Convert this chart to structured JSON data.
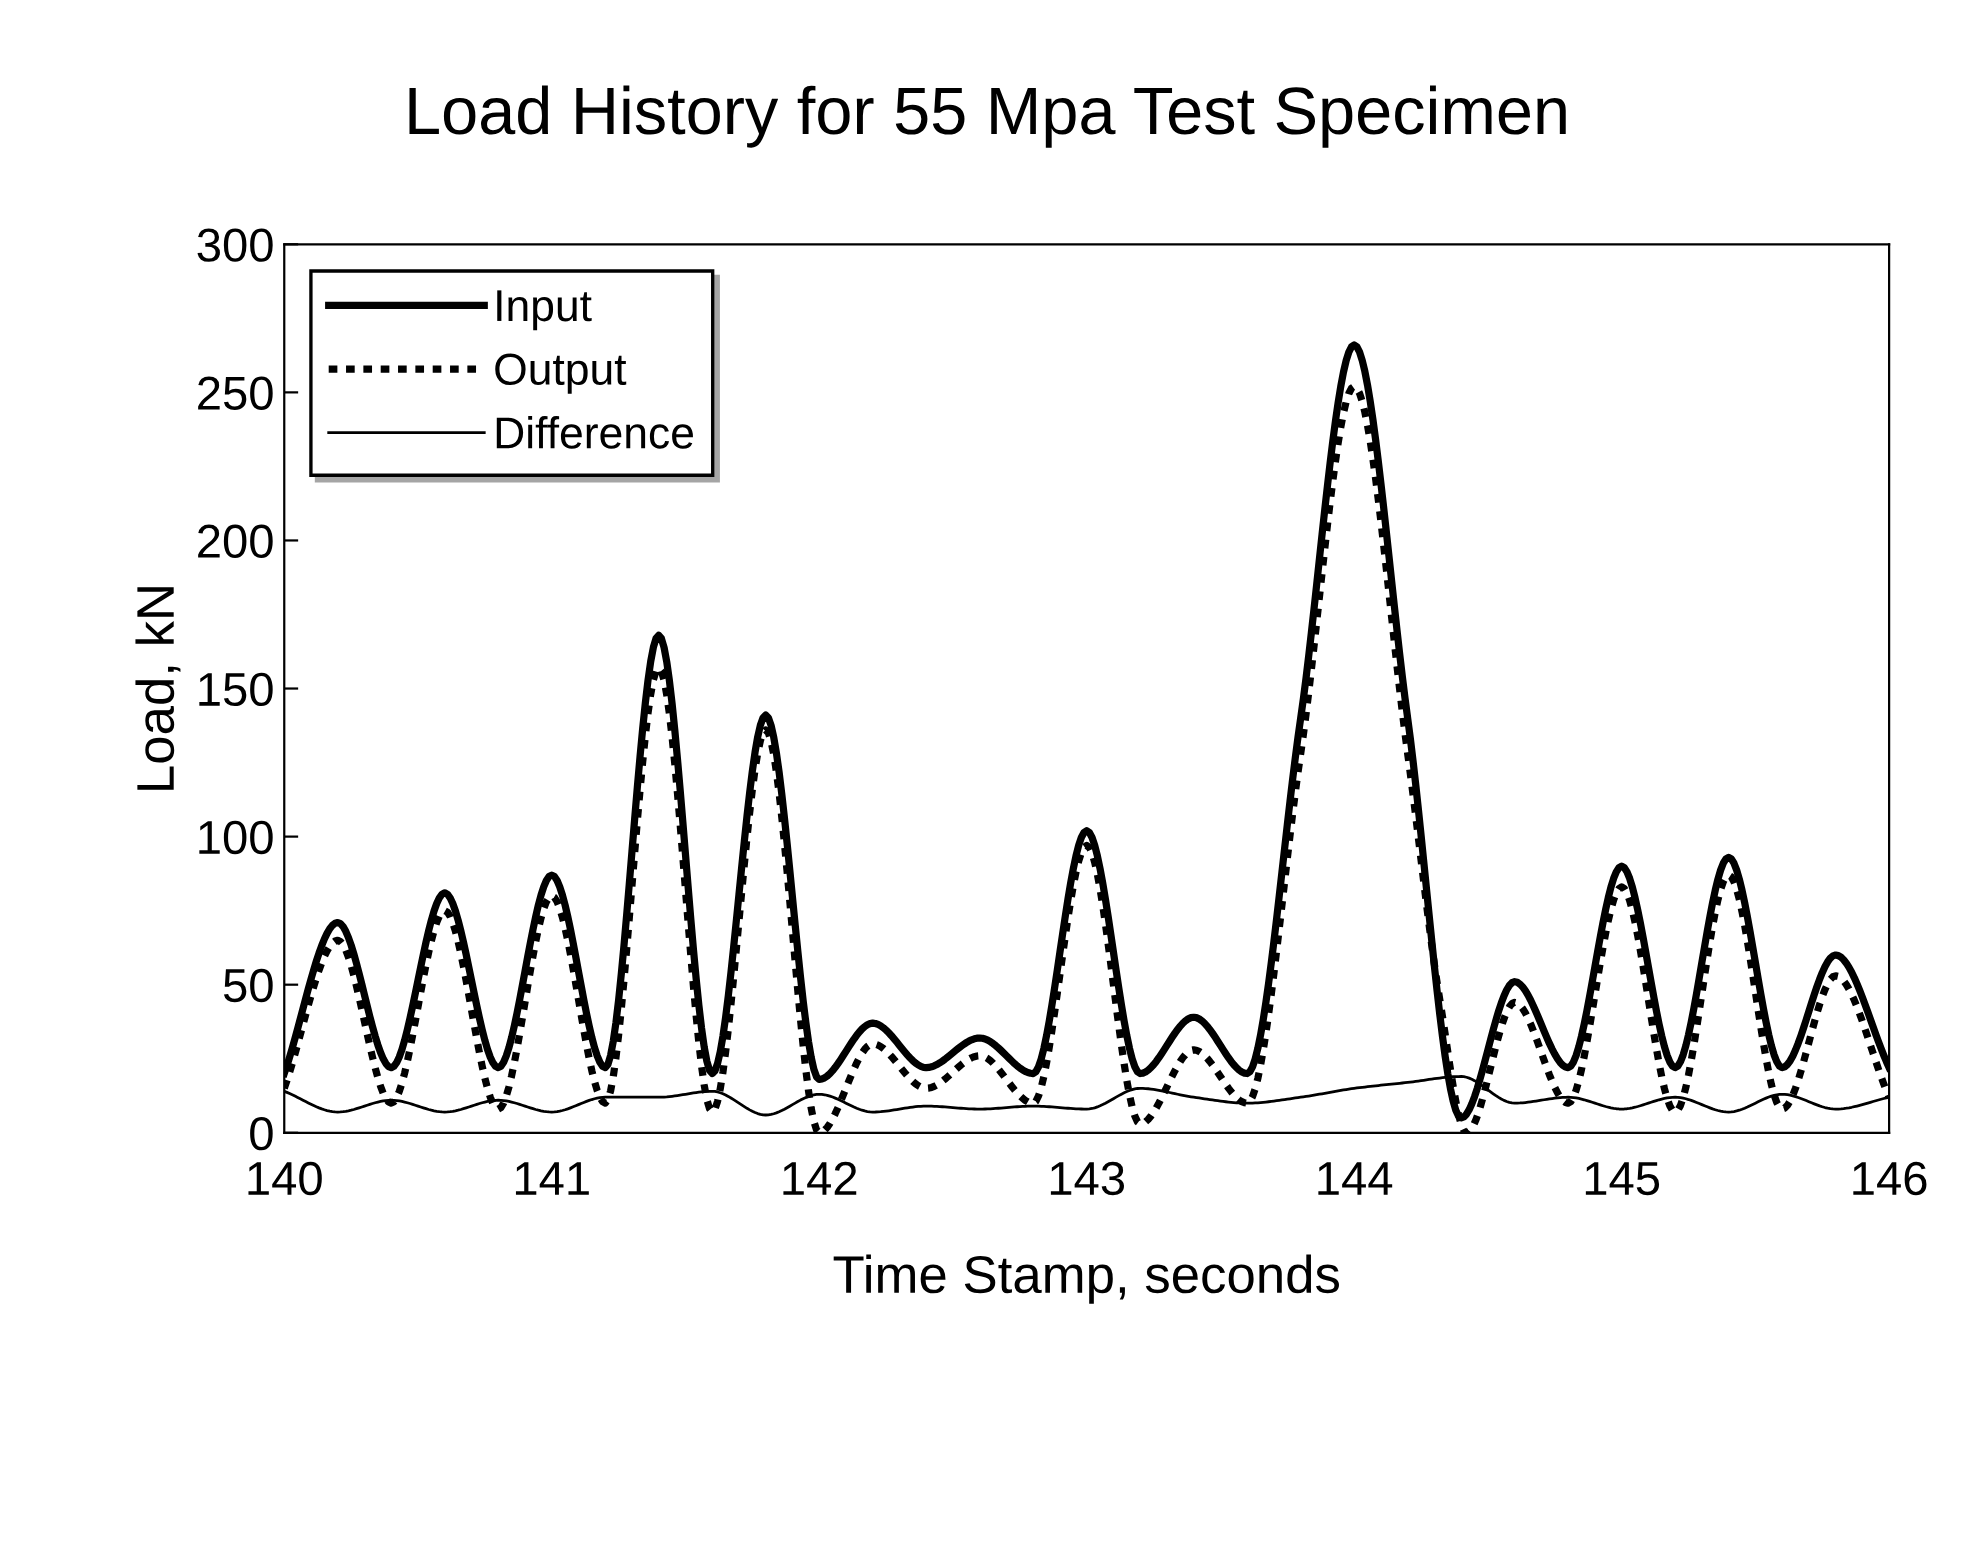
{
  "chart_data": {
    "type": "line",
    "title": "Load History for 55 Mpa Test Specimen",
    "xlabel": "Time Stamp, seconds",
    "ylabel": "Load, kN",
    "xlim": [
      140,
      146
    ],
    "xticks": [
      140,
      141,
      142,
      143,
      144,
      145,
      146
    ],
    "ylim": [
      0,
      300
    ],
    "yticks": [
      0,
      50,
      100,
      150,
      200,
      250,
      300
    ],
    "grid": false,
    "legend": "top left",
    "marker": "none",
    "series": [
      {
        "name": "Input",
        "color": "#000000",
        "line_style": "solid",
        "x": [
          140.0,
          140.2,
          140.4,
          140.6,
          140.8,
          141.0,
          141.2,
          141.4,
          141.6,
          141.8,
          142.0,
          142.2,
          142.4,
          142.6,
          142.8,
          143.0,
          143.2,
          143.4,
          143.6,
          143.8,
          144.0,
          144.2,
          144.4,
          144.6,
          144.8,
          145.0,
          145.2,
          145.4,
          145.6,
          145.8,
          146.0
        ],
        "values": [
          20,
          71,
          22,
          81,
          22,
          87,
          22,
          168,
          20,
          141,
          18,
          37,
          22,
          32,
          20,
          102,
          20,
          39,
          20,
          140,
          266,
          140,
          5,
          51,
          22,
          90,
          22,
          93,
          22,
          60,
          22
        ]
      },
      {
        "name": "Output",
        "color": "#000000",
        "line_style": "dotted",
        "x": [
          140.0,
          140.2,
          140.4,
          140.6,
          140.8,
          141.0,
          141.2,
          141.4,
          141.6,
          141.8,
          142.0,
          142.2,
          142.4,
          142.6,
          142.8,
          143.0,
          143.2,
          143.4,
          143.6,
          143.8,
          144.0,
          144.2,
          144.32,
          144.42,
          144.6,
          144.8,
          145.0,
          145.2,
          145.4,
          145.6,
          145.8,
          146.0
        ],
        "values": [
          15,
          65,
          10,
          75,
          8,
          80,
          10,
          157,
          7,
          136,
          0,
          30,
          15,
          26,
          10,
          97,
          3,
          28,
          10,
          128,
          252,
          128,
          45,
          0,
          44,
          10,
          83,
          7,
          87,
          8,
          53,
          12
        ]
      },
      {
        "name": "Difference",
        "color": "#000000",
        "line_style": "solid",
        "x": [
          140.0,
          140.2,
          140.4,
          140.6,
          140.8,
          141.0,
          141.2,
          141.4,
          141.6,
          141.8,
          142.0,
          142.2,
          142.4,
          142.6,
          142.8,
          143.0,
          143.2,
          143.4,
          143.6,
          143.8,
          144.0,
          144.2,
          144.4,
          144.6,
          144.8,
          145.0,
          145.2,
          145.4,
          145.6,
          145.8,
          146.0
        ],
        "values": [
          14,
          7,
          11,
          7,
          11,
          7,
          12,
          12,
          14,
          6,
          13,
          7,
          9,
          8,
          9,
          8,
          15,
          12,
          10,
          12,
          15,
          17,
          19,
          10,
          12,
          8,
          12,
          7,
          13,
          8,
          12
        ]
      }
    ]
  }
}
